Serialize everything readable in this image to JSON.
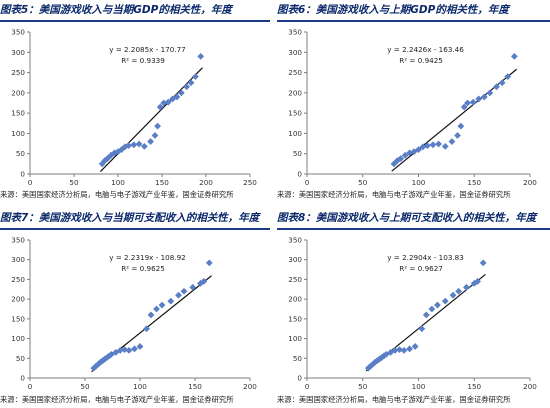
{
  "colors": {
    "title": "#0c2a6b",
    "rule": "#1b3a84",
    "marker": "#5b7fc6",
    "trend": "#111111",
    "axis": "#7f7f7f"
  },
  "chart_data": [
    {
      "type": "scatter",
      "title": "图表5：美国游戏收入与当期GDP的相关性，年度",
      "source": "来源：美国国家经济分析局，电脑与电子游戏产业年鉴，国金证券研究所",
      "equation": "y = 2.2085x - 170.77",
      "r2": "R² = 0.9339",
      "trendline": {
        "slope": 2.2085,
        "intercept": -170.77
      },
      "xlim": [
        0,
        250
      ],
      "ylim": [
        0,
        350
      ],
      "xticks": [
        0,
        50,
        100,
        150,
        200,
        250
      ],
      "yticks": [
        0,
        50,
        100,
        150,
        200,
        250,
        300,
        350
      ],
      "x": [
        82,
        85,
        88,
        92,
        96,
        100,
        104,
        108,
        112,
        118,
        124,
        130,
        137,
        142,
        145,
        148,
        152,
        157,
        162,
        167,
        172,
        178,
        183,
        188,
        194
      ],
      "y": [
        25,
        33,
        38,
        46,
        52,
        55,
        60,
        67,
        70,
        72,
        74,
        68,
        80,
        95,
        118,
        165,
        175,
        177,
        185,
        190,
        200,
        215,
        225,
        240,
        290
      ]
    },
    {
      "type": "scatter",
      "title": "图表6：美国游戏收入与上期GDP的相关性，年度",
      "source": "来源：美国国家经济分析局，电脑与电子游戏产业年鉴，国金证券研究所",
      "equation": "y = 2.2426x - 163.46",
      "r2": "R² = 0.9425",
      "trendline": {
        "slope": 2.2426,
        "intercept": -163.46
      },
      "xlim": [
        0,
        200
      ],
      "ylim": [
        0,
        350
      ],
      "xticks": [
        0,
        50,
        100,
        150,
        200
      ],
      "yticks": [
        0,
        50,
        100,
        150,
        200,
        250,
        300,
        350
      ],
      "x": [
        78,
        81,
        84,
        88,
        92,
        96,
        100,
        104,
        108,
        113,
        118,
        124,
        130,
        135,
        138,
        141,
        144,
        149,
        154,
        159,
        164,
        170,
        175,
        180,
        186
      ],
      "y": [
        25,
        33,
        38,
        46,
        52,
        55,
        60,
        67,
        70,
        72,
        74,
        68,
        80,
        95,
        118,
        165,
        175,
        177,
        185,
        190,
        200,
        215,
        225,
        240,
        290
      ]
    },
    {
      "type": "scatter",
      "title": "图表7：美国游戏收入与当期可支配收入的相关性，年度",
      "source": "来源：美国国家经济分析局，电脑与电子游戏产业年鉴，国金证券研究所",
      "equation": "y = 2.2319x - 108.92",
      "r2": "R² = 0.9625",
      "trendline": {
        "slope": 2.2319,
        "intercept": -108.92
      },
      "xlim": [
        0,
        200
      ],
      "ylim": [
        0,
        350
      ],
      "xticks": [
        0,
        50,
        100,
        150,
        200
      ],
      "yticks": [
        0,
        50,
        100,
        150,
        200,
        250,
        300,
        350
      ],
      "x": [
        58,
        60,
        62,
        64,
        66,
        68,
        70,
        72,
        74,
        78,
        82,
        86,
        90,
        95,
        100,
        106,
        110,
        115,
        120,
        128,
        135,
        140,
        148,
        155,
        158,
        163
      ],
      "y": [
        25,
        30,
        35,
        40,
        44,
        48,
        52,
        56,
        60,
        65,
        70,
        72,
        70,
        74,
        80,
        125,
        160,
        175,
        185,
        195,
        210,
        220,
        230,
        240,
        245,
        292
      ]
    },
    {
      "type": "scatter",
      "title": "图表8：美国游戏收入与上期可支配收入的相关性，年度",
      "source": "来源：美国国家经济分析局，电脑与电子游戏产业年鉴，国金证券研究所",
      "equation": "y = 2.2904x - 103.83",
      "r2": "R² = 0.9627",
      "trendline": {
        "slope": 2.2904,
        "intercept": -103.83
      },
      "xlim": [
        0,
        200
      ],
      "ylim": [
        0,
        350
      ],
      "xticks": [
        0,
        50,
        100,
        150,
        200
      ],
      "yticks": [
        0,
        50,
        100,
        150,
        200,
        250,
        300,
        350
      ],
      "x": [
        55,
        57,
        59,
        61,
        63,
        65,
        67,
        69,
        71,
        75,
        79,
        83,
        87,
        92,
        97,
        103,
        107,
        112,
        117,
        124,
        131,
        136,
        143,
        150,
        153,
        158
      ],
      "y": [
        25,
        30,
        35,
        40,
        44,
        48,
        52,
        56,
        60,
        65,
        70,
        72,
        70,
        74,
        80,
        125,
        160,
        175,
        185,
        195,
        210,
        220,
        230,
        240,
        245,
        292
      ]
    }
  ]
}
